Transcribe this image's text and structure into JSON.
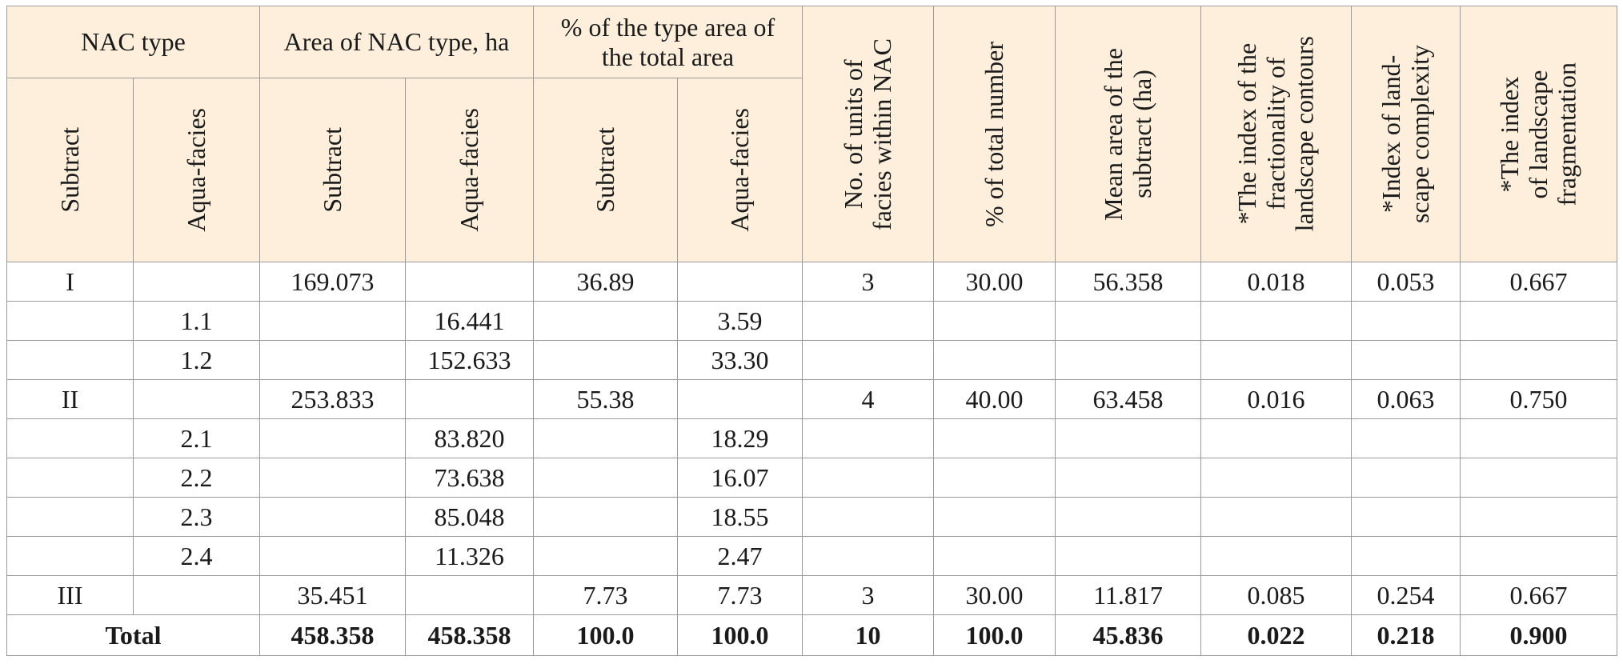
{
  "headers": {
    "nac_type": "NAC type",
    "area": "Area of NAC type, ha",
    "percent_area": "% of the type area of the total area",
    "units": [
      "No. of units of",
      "facies within NAC"
    ],
    "percent_total": "% of total number",
    "mean_area": [
      "Mean area of the",
      "subtract (ha)"
    ],
    "fractionality": [
      "*The index of the",
      "fractionality of",
      "landscape contours"
    ],
    "complexity": [
      "*Index of land-",
      "scape complexity"
    ],
    "fragmentation": [
      "*The index",
      "of landscape",
      "fragmentation"
    ],
    "subtract": "Subtract",
    "aqua_facies": "Aqua-facies"
  },
  "rows": [
    {
      "type": "I",
      "aqua": "",
      "area_sub": "169.073",
      "area_aqua": "",
      "pct_sub": "36.89",
      "pct_aqua": "",
      "units": "3",
      "pct_total": "30.00",
      "mean": "56.358",
      "fract": "0.018",
      "compl": "0.053",
      "fragm": "0.667"
    },
    {
      "type": "",
      "aqua": "1.1",
      "area_sub": "",
      "area_aqua": "16.441",
      "pct_sub": "",
      "pct_aqua": "3.59",
      "units": "",
      "pct_total": "",
      "mean": "",
      "fract": "",
      "compl": "",
      "fragm": ""
    },
    {
      "type": "",
      "aqua": "1.2",
      "area_sub": "",
      "area_aqua": "152.633",
      "pct_sub": "",
      "pct_aqua": "33.30",
      "units": "",
      "pct_total": "",
      "mean": "",
      "fract": "",
      "compl": "",
      "fragm": ""
    },
    {
      "type": "II",
      "aqua": "",
      "area_sub": "253.833",
      "area_aqua": "",
      "pct_sub": "55.38",
      "pct_aqua": "",
      "units": "4",
      "pct_total": "40.00",
      "mean": "63.458",
      "fract": "0.016",
      "compl": "0.063",
      "fragm": "0.750"
    },
    {
      "type": "",
      "aqua": "2.1",
      "area_sub": "",
      "area_aqua": "83.820",
      "pct_sub": "",
      "pct_aqua": "18.29",
      "units": "",
      "pct_total": "",
      "mean": "",
      "fract": "",
      "compl": "",
      "fragm": ""
    },
    {
      "type": "",
      "aqua": "2.2",
      "area_sub": "",
      "area_aqua": "73.638",
      "pct_sub": "",
      "pct_aqua": "16.07",
      "units": "",
      "pct_total": "",
      "mean": "",
      "fract": "",
      "compl": "",
      "fragm": ""
    },
    {
      "type": "",
      "aqua": "2.3",
      "area_sub": "",
      "area_aqua": "85.048",
      "pct_sub": "",
      "pct_aqua": "18.55",
      "units": "",
      "pct_total": "",
      "mean": "",
      "fract": "",
      "compl": "",
      "fragm": ""
    },
    {
      "type": "",
      "aqua": "2.4",
      "area_sub": "",
      "area_aqua": "11.326",
      "pct_sub": "",
      "pct_aqua": "2.47",
      "units": "",
      "pct_total": "",
      "mean": "",
      "fract": "",
      "compl": "",
      "fragm": ""
    },
    {
      "type": "III",
      "aqua": "",
      "area_sub": "35.451",
      "area_aqua": "",
      "pct_sub": "7.73",
      "pct_aqua": "7.73",
      "units": "3",
      "pct_total": "30.00",
      "mean": "11.817",
      "fract": "0.085",
      "compl": "0.254",
      "fragm": "0.667"
    }
  ],
  "total": {
    "label": "Total",
    "area_sub": "458.358",
    "area_aqua": "458.358",
    "pct_sub": "100.0",
    "pct_aqua": "100.0",
    "units": "10",
    "pct_total": "100.0",
    "mean": "45.836",
    "fract": "0.022",
    "compl": "0.218",
    "fragm": "0.900"
  }
}
